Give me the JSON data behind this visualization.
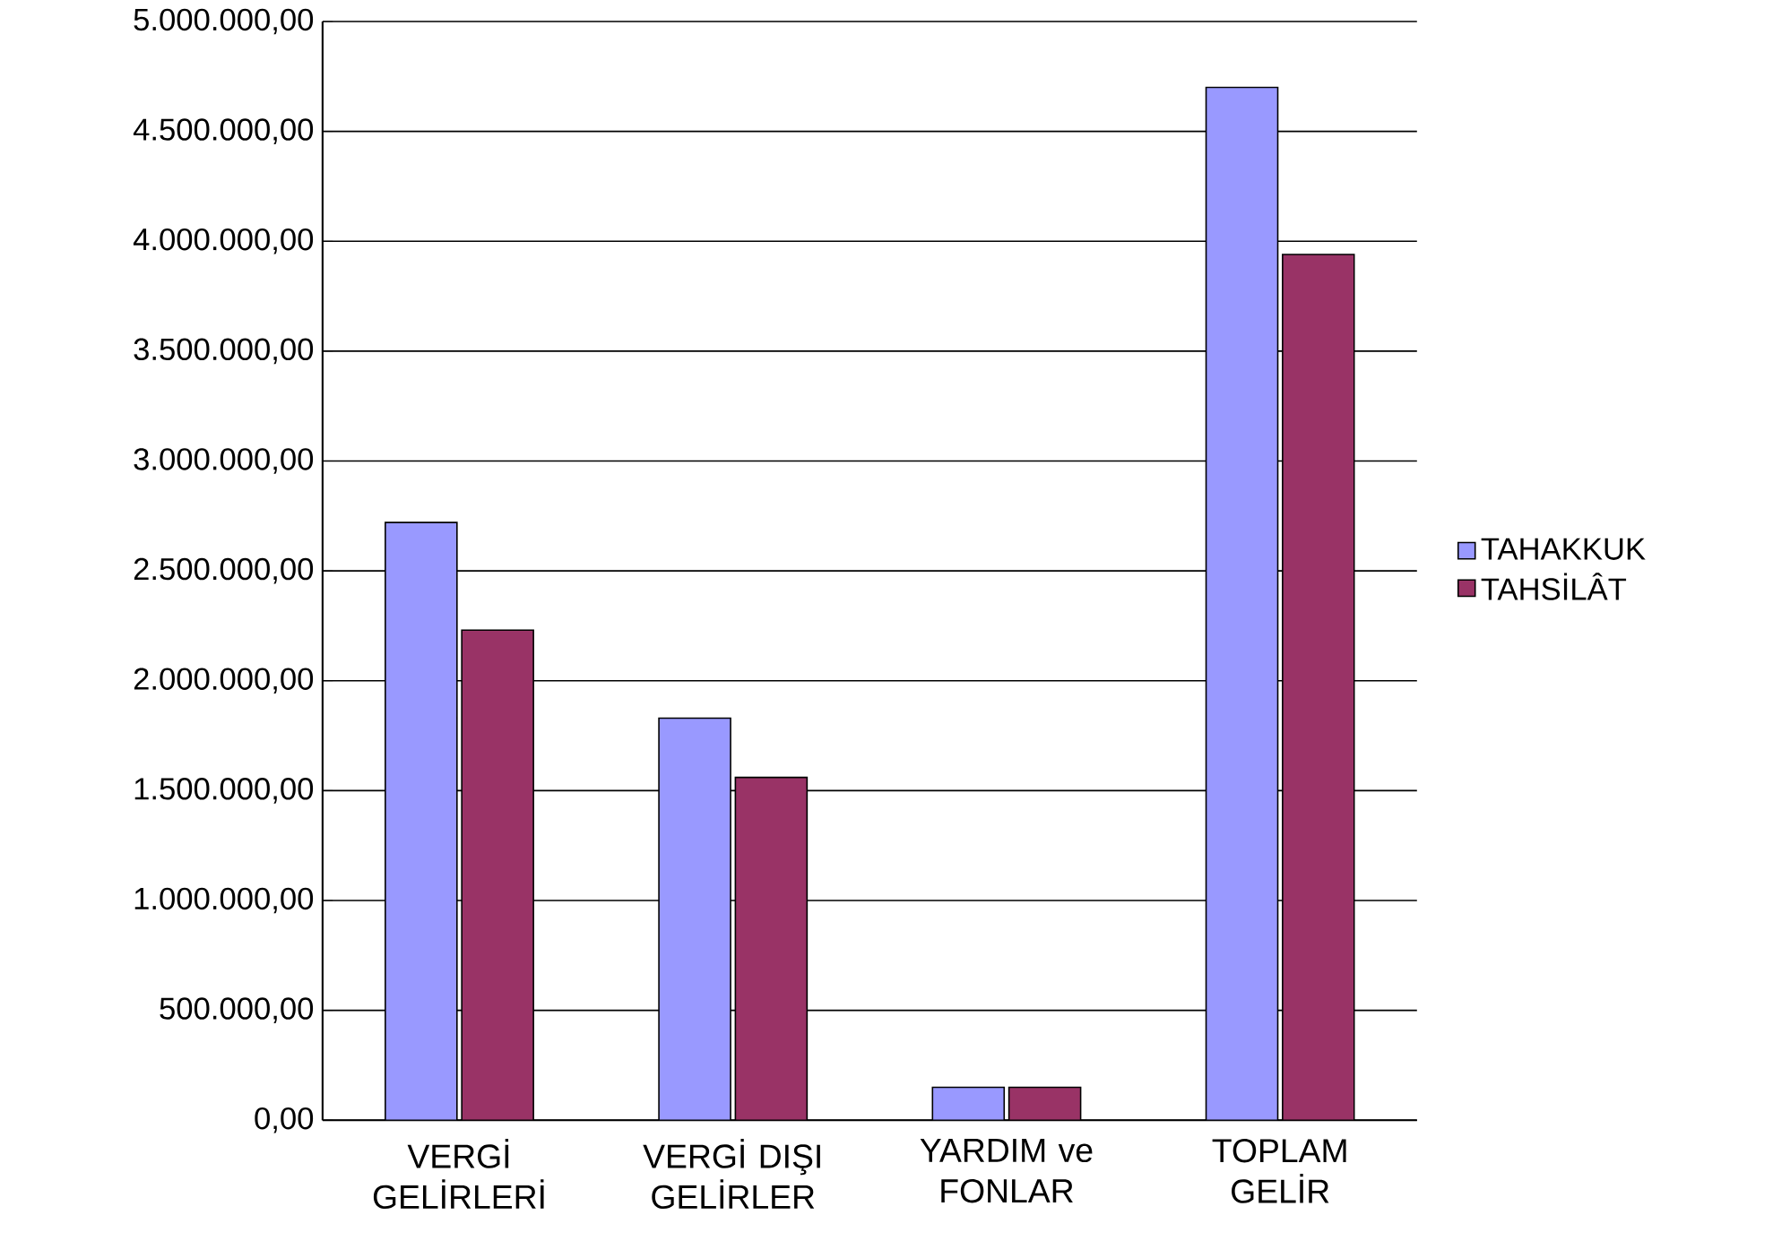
{
  "chart_data": {
    "type": "bar",
    "categories": [
      "VERGİ GELİRLERİ",
      "VERGİ DIŞI GELİRLER",
      "YARDIM ve FONLAR",
      "TOPLAM GELİR"
    ],
    "series": [
      {
        "name": "TAHAKKUK",
        "color": "#9999ff",
        "values": [
          2720000,
          1830000,
          150000,
          4700000
        ]
      },
      {
        "name": "TAHSİLÂT",
        "color": "#993366",
        "values": [
          2230000,
          1560000,
          150000,
          3940000
        ]
      }
    ],
    "ylim": [
      0,
      5000000
    ],
    "yticks": [
      {
        "value": 0,
        "label": "0,00"
      },
      {
        "value": 500000,
        "label": "500.000,00"
      },
      {
        "value": 1000000,
        "label": "1.000.000,00"
      },
      {
        "value": 1500000,
        "label": "1.500.000,00"
      },
      {
        "value": 2000000,
        "label": "2.000.000,00"
      },
      {
        "value": 2500000,
        "label": "2.500.000,00"
      },
      {
        "value": 3000000,
        "label": "3.000.000,00"
      },
      {
        "value": 3500000,
        "label": "3.500.000,00"
      },
      {
        "value": 4000000,
        "label": "4.000.000,00"
      },
      {
        "value": 4500000,
        "label": "4.500.000,00"
      },
      {
        "value": 5000000,
        "label": "5.000.000,00"
      }
    ],
    "grid": "y",
    "legend": "right"
  }
}
